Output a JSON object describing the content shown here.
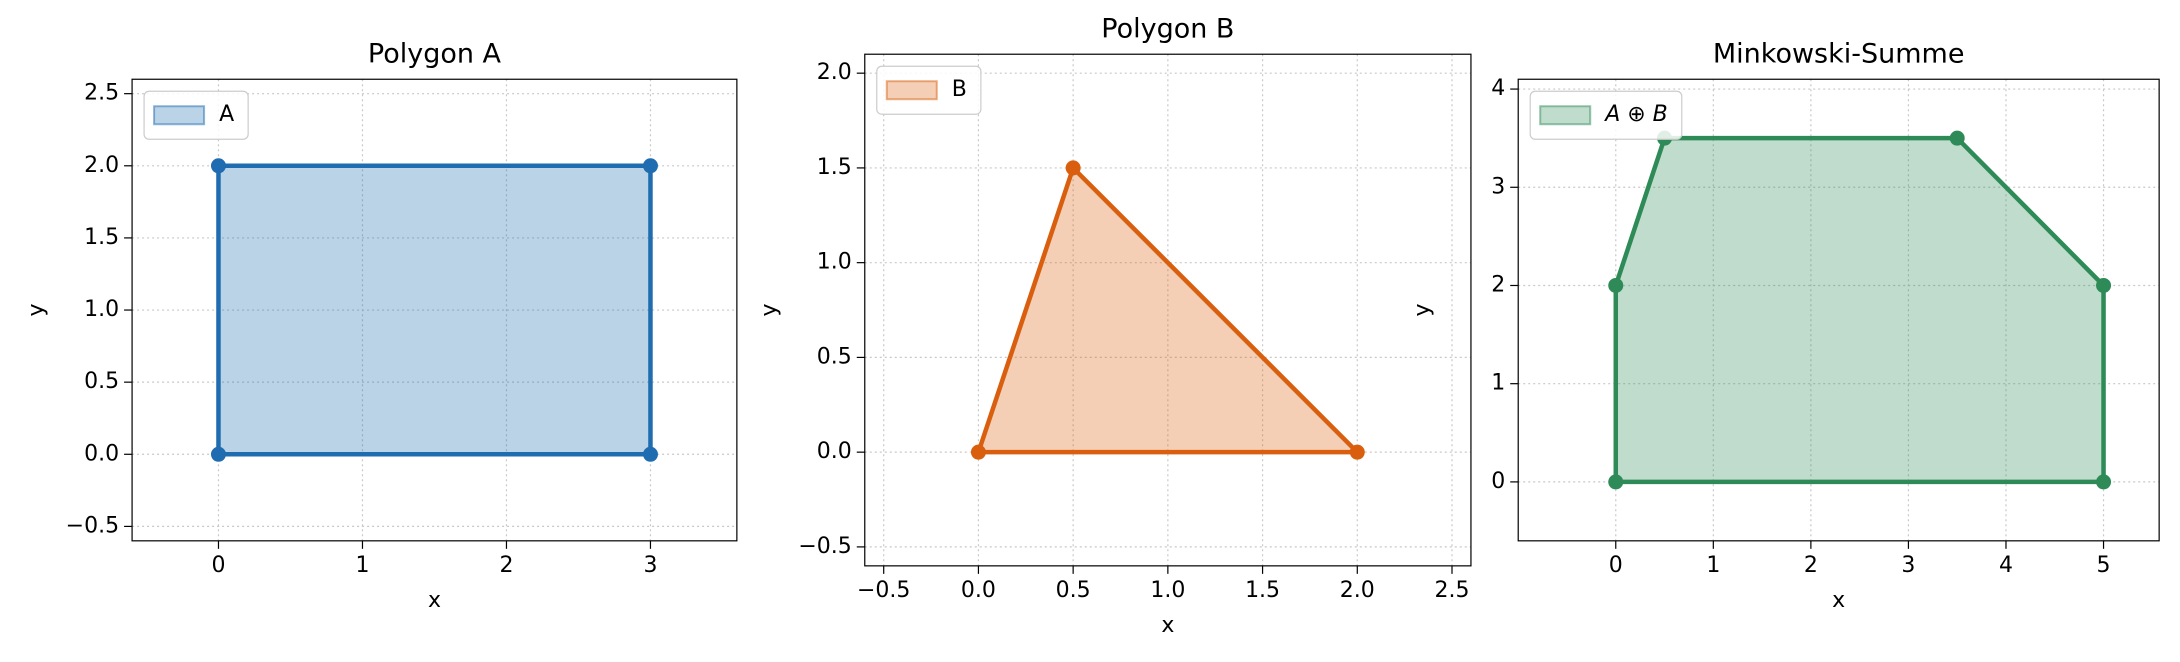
{
  "chart_data": [
    {
      "type": "polygon",
      "title": "Polygon A",
      "xlabel": "x",
      "ylabel": "y",
      "legend": "upper left",
      "series": [
        {
          "name": "A",
          "color": "#1f6cb0",
          "x": [
            0,
            3,
            3,
            0
          ],
          "values": [
            0,
            0,
            2,
            2
          ]
        }
      ],
      "xlim": [
        -0.6,
        3.6
      ],
      "ylim": [
        -0.6,
        2.6
      ],
      "xticks": [
        0,
        1,
        2,
        3
      ],
      "yticks": [
        {
          "value": -0.5,
          "label": "−0.5"
        },
        {
          "value": 0,
          "label": "0.0"
        },
        {
          "value": 0.5,
          "label": "0.5"
        },
        {
          "value": 1,
          "label": "1.0"
        },
        {
          "value": 1.5,
          "label": "1.5"
        },
        {
          "value": 2,
          "label": "2.0"
        },
        {
          "value": 2.5,
          "label": "2.5"
        }
      ],
      "grid": true
    },
    {
      "type": "polygon",
      "title": "Polygon B",
      "xlabel": "x",
      "ylabel": "y",
      "legend": "upper left",
      "series": [
        {
          "name": "B",
          "color": "#d95f0e",
          "x": [
            0,
            2,
            0.5
          ],
          "values": [
            0,
            0,
            1.5
          ]
        }
      ],
      "xlim": [
        -0.6,
        2.6
      ],
      "ylim": [
        -0.6,
        2.1
      ],
      "xticks": [
        {
          "value": -0.5,
          "label": "−0.5"
        },
        {
          "value": 0,
          "label": "0.0"
        },
        {
          "value": 0.5,
          "label": "0.5"
        },
        {
          "value": 1,
          "label": "1.0"
        },
        {
          "value": 1.5,
          "label": "1.5"
        },
        {
          "value": 2,
          "label": "2.0"
        },
        {
          "value": 2.5,
          "label": "2.5"
        }
      ],
      "yticks": [
        {
          "value": -0.5,
          "label": "−0.5"
        },
        {
          "value": 0,
          "label": "0.0"
        },
        {
          "value": 0.5,
          "label": "0.5"
        },
        {
          "value": 1,
          "label": "1.0"
        },
        {
          "value": 1.5,
          "label": "1.5"
        },
        {
          "value": 2,
          "label": "2.0"
        }
      ],
      "grid": true
    },
    {
      "type": "polygon",
      "title": "Minkowski-Summe",
      "xlabel": "x",
      "ylabel": "y",
      "legend": "upper left",
      "series": [
        {
          "name": "A ⊕ B",
          "color": "#2e8b57",
          "x": [
            0,
            5,
            5,
            3.5,
            0.5,
            0
          ],
          "values": [
            0,
            0,
            2,
            3.5,
            3.5,
            2
          ]
        }
      ],
      "xlim": [
        -1,
        5.57
      ],
      "ylim": [
        -0.6,
        4.1
      ],
      "xticks": [
        0,
        1,
        2,
        3,
        4,
        5
      ],
      "yticks": [
        0,
        1,
        2,
        3,
        4
      ],
      "grid": true
    }
  ]
}
